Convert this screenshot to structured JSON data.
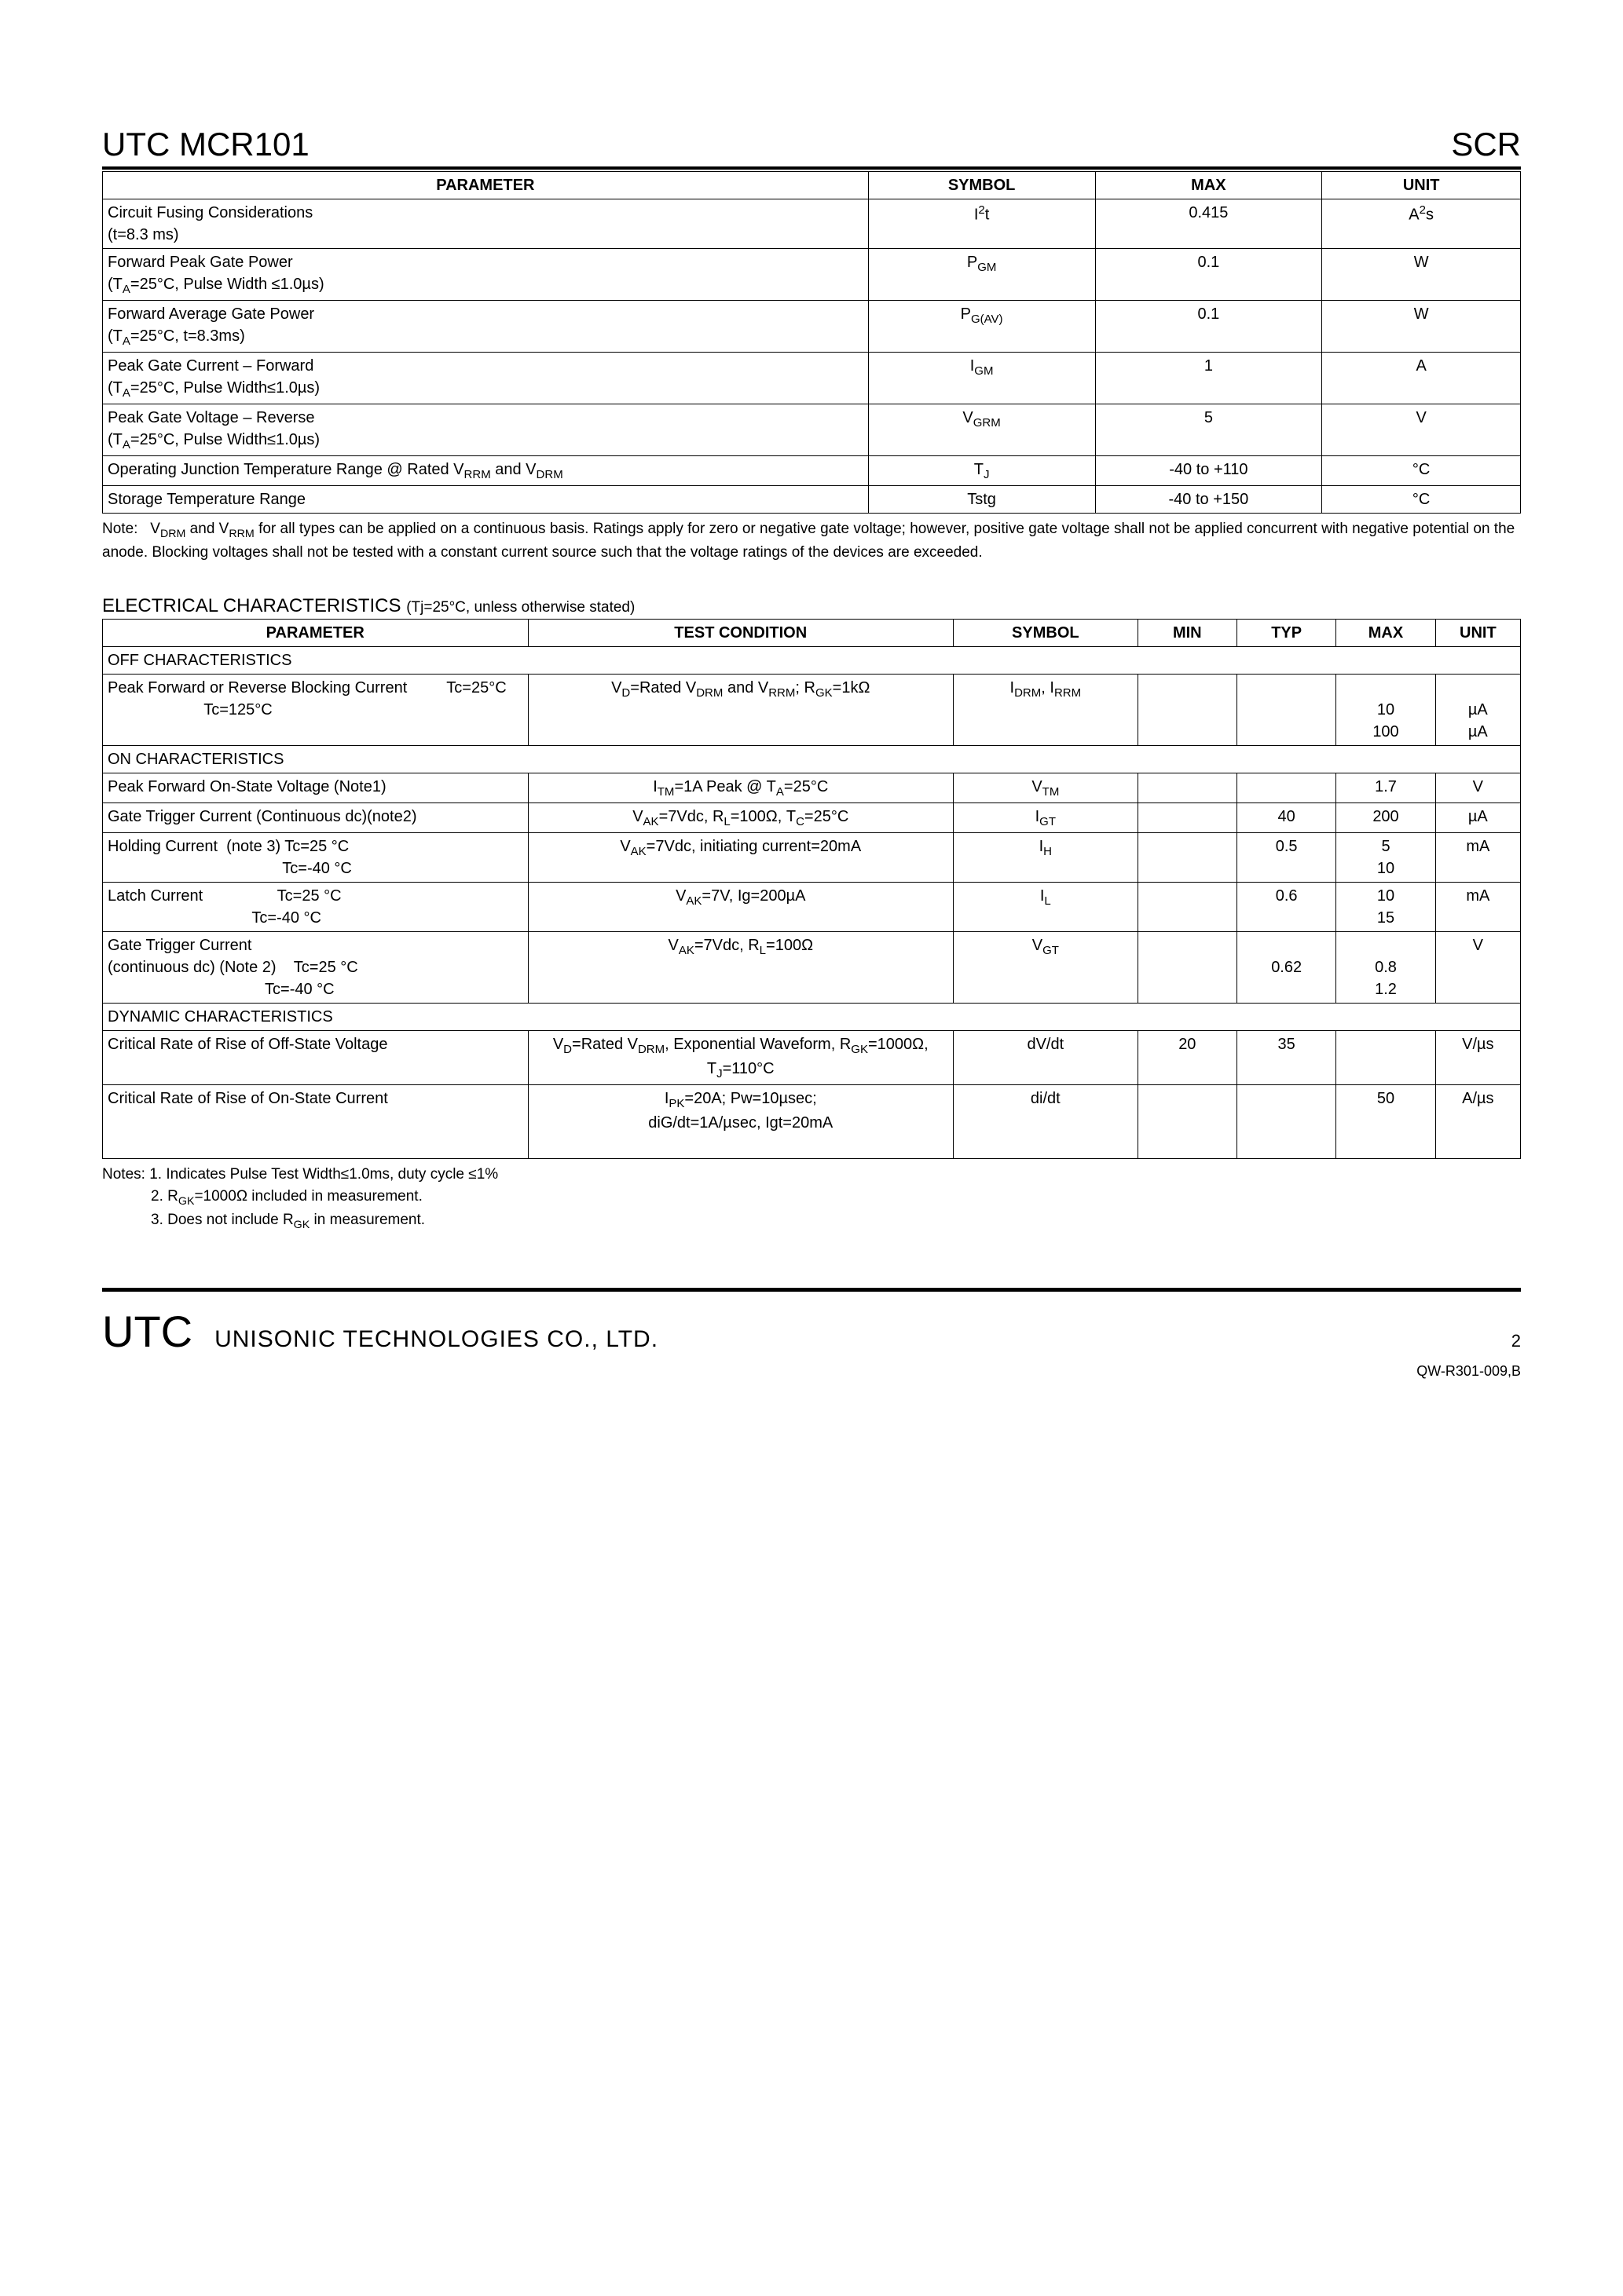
{
  "header": {
    "left": "UTC MCR101",
    "right": "SCR"
  },
  "table1": {
    "headers": [
      "PARAMETER",
      "SYMBOL",
      "MAX",
      "UNIT"
    ],
    "rows": [
      {
        "param": "Circuit Fusing Considerations<br>(t=8.3 ms)",
        "symbol": "I<sup>2</sup>t",
        "max": "0.415",
        "unit": "A<sup>2</sup>s"
      },
      {
        "param": "Forward Peak Gate Power<br>(T<sub>A</sub>=25°C, Pulse Width ≤1.0µs)",
        "symbol": "P<sub>GM</sub>",
        "max": "0.1",
        "unit": "W"
      },
      {
        "param": "Forward Average Gate Power<br>(T<sub>A</sub>=25°C, t=8.3ms)",
        "symbol": "P<sub>G(AV)</sub>",
        "max": "0.1",
        "unit": "W"
      },
      {
        "param": "Peak Gate Current – Forward<br>(T<sub>A</sub>=25°C, Pulse Width≤1.0µs)",
        "symbol": "I<sub>GM</sub>",
        "max": "1",
        "unit": "A"
      },
      {
        "param": "Peak Gate Voltage – Reverse<br>(T<sub>A</sub>=25°C, Pulse Width≤1.0µs)",
        "symbol": "V<sub>GRM</sub>",
        "max": "5",
        "unit": "V"
      },
      {
        "param": "Operating Junction Temperature Range @ Rated V<sub>RRM</sub> and V<sub>DRM</sub>",
        "symbol": "T<sub>J</sub>",
        "max": "-40 to +110",
        "unit": "°C"
      },
      {
        "param": "Storage Temperature Range",
        "symbol": "Tstg",
        "max": "-40 to +150",
        "unit": "°C"
      }
    ]
  },
  "note1": {
    "prefix": "Note:",
    "body": "V<sub>DRM</sub> and V<sub>RRM</sub> for all types can be applied on a continuous basis. Ratings apply for zero or negative gate voltage; however, positive gate voltage shall not be applied concurrent with negative potential on the anode. Blocking voltages shall not be tested with a constant current source such that the voltage ratings of the devices are exceeded."
  },
  "section2_title": "ELECTRICAL CHARACTERISTICS",
  "section2_sub": "(Tj=25°C, unless otherwise stated)",
  "table2": {
    "headers": [
      "PARAMETER",
      "TEST CONDITION",
      "SYMBOL",
      "MIN",
      "TYP",
      "MAX",
      "UNIT"
    ],
    "sections": [
      {
        "title": "OFF CHARACTERISTICS",
        "rows": [
          {
            "param": "Peak Forward or Reverse Blocking Current&nbsp;&nbsp;&nbsp;&nbsp;&nbsp;&nbsp;&nbsp;&nbsp;&nbsp;Tc=25°C<br>&nbsp;&nbsp;&nbsp;&nbsp;&nbsp;&nbsp;&nbsp;&nbsp;&nbsp;&nbsp;&nbsp;&nbsp;&nbsp;&nbsp;&nbsp;&nbsp;&nbsp;&nbsp;&nbsp;&nbsp;&nbsp;&nbsp;Tc=125°C",
            "cond": "V<sub>D</sub>=Rated V<sub>DRM</sub> and V<sub>RRM</sub>; R<sub>GK</sub>=1kΩ",
            "symbol": "I<sub>DRM</sub>, I<sub>RRM</sub>",
            "min": "",
            "typ": "",
            "max": "<br>10<br>100",
            "unit": "<br>µA<br>µA"
          }
        ]
      },
      {
        "title": "ON CHARACTERISTICS",
        "rows": [
          {
            "param": "Peak Forward On-State Voltage (Note1)",
            "cond": "I<sub>TM</sub>=1A Peak @ T<sub>A</sub>=25°C",
            "symbol": "V<sub>TM</sub>",
            "min": "",
            "typ": "",
            "max": "1.7",
            "unit": "V"
          },
          {
            "param": "Gate Trigger Current (Continuous dc)(note2)",
            "cond": "V<sub>AK</sub>=7Vdc, R<sub>L</sub>=100Ω, T<sub>C</sub>=25°C",
            "symbol": "I<sub>GT</sub>",
            "min": "",
            "typ": "40",
            "max": "200",
            "unit": "µA"
          },
          {
            "param": "Holding Current&nbsp;&nbsp;(note 3) Tc=25 °C<br>&nbsp;&nbsp;&nbsp;&nbsp;&nbsp;&nbsp;&nbsp;&nbsp;&nbsp;&nbsp;&nbsp;&nbsp;&nbsp;&nbsp;&nbsp;&nbsp;&nbsp;&nbsp;&nbsp;&nbsp;&nbsp;&nbsp;&nbsp;&nbsp;&nbsp;&nbsp;&nbsp;&nbsp;&nbsp;&nbsp;&nbsp;&nbsp;&nbsp;&nbsp;&nbsp;&nbsp;&nbsp;&nbsp;&nbsp;&nbsp;Tc=-40 °C",
            "cond": "V<sub>AK</sub>=7Vdc, initiating current=20mA",
            "symbol": "I<sub>H</sub>",
            "min": "",
            "typ": "0.5",
            "max": "5<br>10",
            "unit": "mA"
          },
          {
            "param": "Latch Current&nbsp;&nbsp;&nbsp;&nbsp;&nbsp;&nbsp;&nbsp;&nbsp;&nbsp;&nbsp;&nbsp;&nbsp;&nbsp;&nbsp;&nbsp;&nbsp;&nbsp;Tc=25 °C<br>&nbsp;&nbsp;&nbsp;&nbsp;&nbsp;&nbsp;&nbsp;&nbsp;&nbsp;&nbsp;&nbsp;&nbsp;&nbsp;&nbsp;&nbsp;&nbsp;&nbsp;&nbsp;&nbsp;&nbsp;&nbsp;&nbsp;&nbsp;&nbsp;&nbsp;&nbsp;&nbsp;&nbsp;&nbsp;&nbsp;&nbsp;&nbsp;&nbsp;Tc=-40 °C",
            "cond": "V<sub>AK</sub>=7V, Ig=200µA",
            "symbol": "I<sub>L</sub>",
            "min": "",
            "typ": "0.6",
            "max": "10<br>15",
            "unit": "mA"
          },
          {
            "param": "Gate Trigger Current<br>(continuous dc) (Note 2)&nbsp;&nbsp;&nbsp;&nbsp;Tc=25 °C<br>&nbsp;&nbsp;&nbsp;&nbsp;&nbsp;&nbsp;&nbsp;&nbsp;&nbsp;&nbsp;&nbsp;&nbsp;&nbsp;&nbsp;&nbsp;&nbsp;&nbsp;&nbsp;&nbsp;&nbsp;&nbsp;&nbsp;&nbsp;&nbsp;&nbsp;&nbsp;&nbsp;&nbsp;&nbsp;&nbsp;&nbsp;&nbsp;&nbsp;&nbsp;&nbsp;&nbsp;Tc=-40 °C",
            "cond": "V<sub>AK</sub>=7Vdc, R<sub>L</sub>=100Ω",
            "symbol": "V<sub>GT</sub>",
            "min": "",
            "typ": "<br>0.62",
            "max": "<br>0.8<br>1.2",
            "unit": "V"
          }
        ]
      },
      {
        "title": "DYNAMIC CHARACTERISTICS",
        "rows": [
          {
            "param": "Critical Rate of Rise of Off-State Voltage",
            "cond": "V<sub>D</sub>=Rated V<sub>DRM</sub>, Exponential Waveform, R<sub>GK</sub>=1000Ω, T<sub>J</sub>=110°C",
            "symbol": "dV/dt",
            "min": "20",
            "typ": "35",
            "max": "",
            "unit": "V/µs"
          },
          {
            "param": "Critical Rate of Rise of On-State Current",
            "cond": "I<sub>PK</sub>=20A; Pw=10µsec;<br>diG/dt=1A/µsec, Igt=20mA<br>&nbsp;",
            "symbol": "di/dt",
            "min": "",
            "typ": "",
            "max": "50",
            "unit": "A/µs"
          }
        ]
      }
    ]
  },
  "notes2": [
    "Notes: 1. Indicates Pulse Test Width≤1.0ms, duty cycle ≤1%",
    "2. R<sub>GK</sub>=1000Ω included in measurement.",
    "3. Does not include R<sub>GK</sub> in measurement."
  ],
  "footer": {
    "logo": "UTC",
    "company": "UNISONIC TECHNOLOGIES    CO., LTD.",
    "page": "2",
    "code": "QW-R301-009,B"
  }
}
